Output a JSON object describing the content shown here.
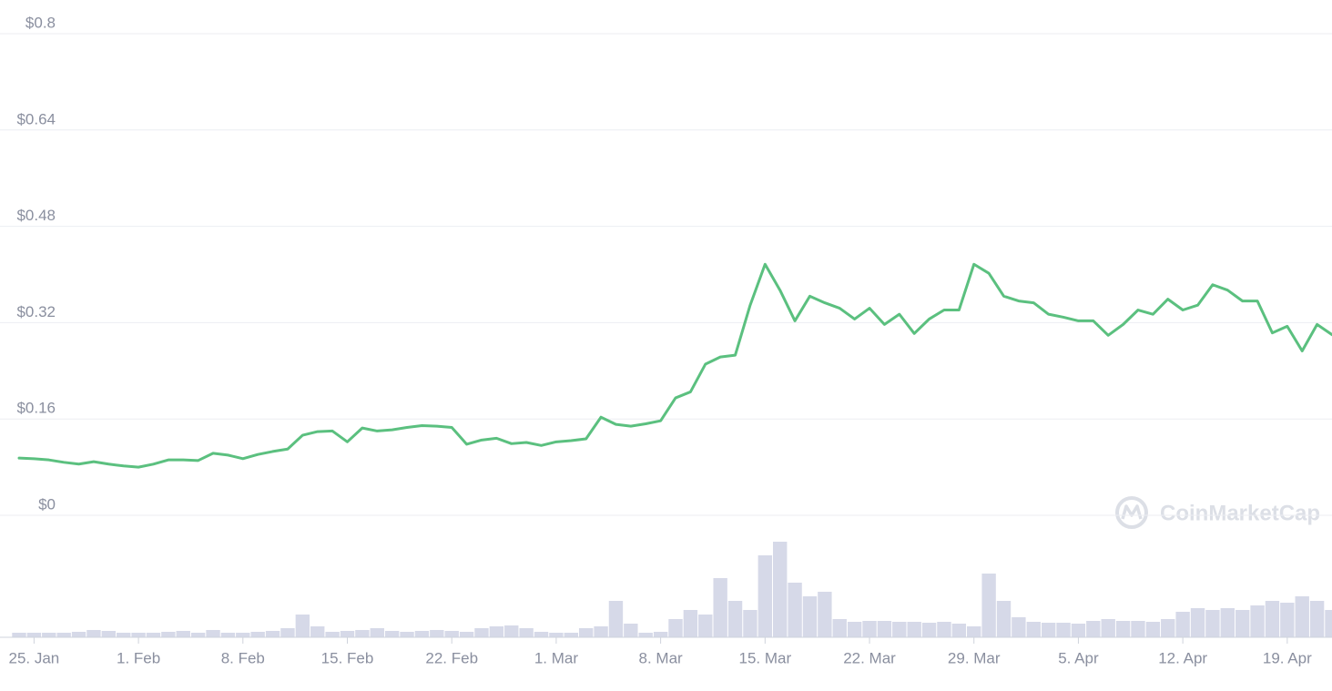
{
  "chart_data": {
    "type": "line",
    "watermark": "CoinMarketCap",
    "categories": [
      "24. Jan",
      "25. Jan",
      "26. Jan",
      "27. Jan",
      "28. Jan",
      "29. Jan",
      "30. Jan",
      "31. Jan",
      "1. Feb",
      "2. Feb",
      "3. Feb",
      "4. Feb",
      "5. Feb",
      "6. Feb",
      "7. Feb",
      "8. Feb",
      "9. Feb",
      "10. Feb",
      "11. Feb",
      "12. Feb",
      "13. Feb",
      "14. Feb",
      "15. Feb",
      "16. Feb",
      "17. Feb",
      "18. Feb",
      "19. Feb",
      "20. Feb",
      "21. Feb",
      "22. Feb",
      "23. Feb",
      "24. Feb",
      "25. Feb",
      "26. Feb",
      "27. Feb",
      "28. Feb",
      "1. Mar",
      "2. Mar",
      "3. Mar",
      "4. Mar",
      "5. Mar",
      "6. Mar",
      "7. Mar",
      "8. Mar",
      "9. Mar",
      "10. Mar",
      "11. Mar",
      "12. Mar",
      "13. Mar",
      "14. Mar",
      "15. Mar",
      "16. Mar",
      "17. Mar",
      "18. Mar",
      "19. Mar",
      "20. Mar",
      "21. Mar",
      "22. Mar",
      "23. Mar",
      "24. Mar",
      "25. Mar",
      "26. Mar",
      "27. Mar",
      "28. Mar",
      "29. Mar",
      "30. Mar",
      "31. Mar",
      "1. Apr",
      "2. Apr",
      "3. Apr",
      "4. Apr",
      "5. Apr",
      "6. Apr",
      "7. Apr",
      "8. Apr",
      "9. Apr",
      "10. Apr",
      "11. Apr",
      "12. Apr",
      "13. Apr",
      "14. Apr",
      "15. Apr",
      "16. Apr",
      "17. Apr",
      "18. Apr",
      "19. Apr",
      "20. Apr",
      "21. Apr",
      "22. Apr"
    ],
    "values": [
      0.095,
      0.094,
      0.092,
      0.088,
      0.085,
      0.089,
      0.085,
      0.082,
      0.08,
      0.085,
      0.092,
      0.092,
      0.091,
      0.103,
      0.1,
      0.094,
      0.101,
      0.106,
      0.11,
      0.133,
      0.139,
      0.14,
      0.122,
      0.145,
      0.14,
      0.142,
      0.146,
      0.149,
      0.148,
      0.146,
      0.118,
      0.125,
      0.128,
      0.119,
      0.121,
      0.116,
      0.122,
      0.124,
      0.127,
      0.163,
      0.151,
      0.148,
      0.152,
      0.157,
      0.195,
      0.205,
      0.251,
      0.263,
      0.266,
      0.349,
      0.417,
      0.374,
      0.323,
      0.364,
      0.353,
      0.344,
      0.326,
      0.344,
      0.317,
      0.334,
      0.302,
      0.326,
      0.341,
      0.341,
      0.417,
      0.402,
      0.364,
      0.356,
      0.353,
      0.334,
      0.329,
      0.323,
      0.323,
      0.299,
      0.317,
      0.341,
      0.334,
      0.359,
      0.341,
      0.349,
      0.383,
      0.374,
      0.356,
      0.356,
      0.303,
      0.314,
      0.273,
      0.317,
      0.3
    ],
    "color": "#5bc07f",
    "volume": [
      5,
      5,
      5,
      5,
      6,
      8,
      7,
      5,
      5,
      5,
      6,
      7,
      5,
      8,
      5,
      5,
      6,
      7,
      10,
      25,
      12,
      6,
      7,
      8,
      10,
      7,
      6,
      7,
      8,
      7,
      6,
      10,
      12,
      13,
      10,
      6,
      5,
      5,
      10,
      12,
      40,
      15,
      5,
      6,
      20,
      30,
      25,
      65,
      40,
      30,
      90,
      105,
      60,
      45,
      50,
      20,
      17,
      18,
      18,
      17,
      17,
      16,
      17,
      15,
      12,
      70,
      40,
      22,
      17,
      16,
      16,
      15,
      18,
      20,
      18,
      18,
      17,
      20,
      28,
      32,
      30,
      32,
      30,
      35,
      40,
      38,
      45,
      40,
      30
    ],
    "volume_color": "#d6d9e8",
    "y2lim": [
      0,
      110
    ],
    "ylim": [
      0,
      0.8
    ],
    "yticks": [
      {
        "value": 0,
        "label": "$0"
      },
      {
        "value": 0.16,
        "label": "$0.16"
      },
      {
        "value": 0.32,
        "label": "$0.32"
      },
      {
        "value": 0.48,
        "label": "$0.48"
      },
      {
        "value": 0.64,
        "label": "$0.64"
      },
      {
        "value": 0.8,
        "label": "$0.8"
      }
    ],
    "xticks": [
      "25. Jan",
      "1. Feb",
      "8. Feb",
      "15. Feb",
      "22. Feb",
      "1. Mar",
      "8. Mar",
      "15. Mar",
      "22. Mar",
      "29. Mar",
      "5. Apr",
      "12. Apr",
      "19. Apr"
    ],
    "grid": true
  }
}
